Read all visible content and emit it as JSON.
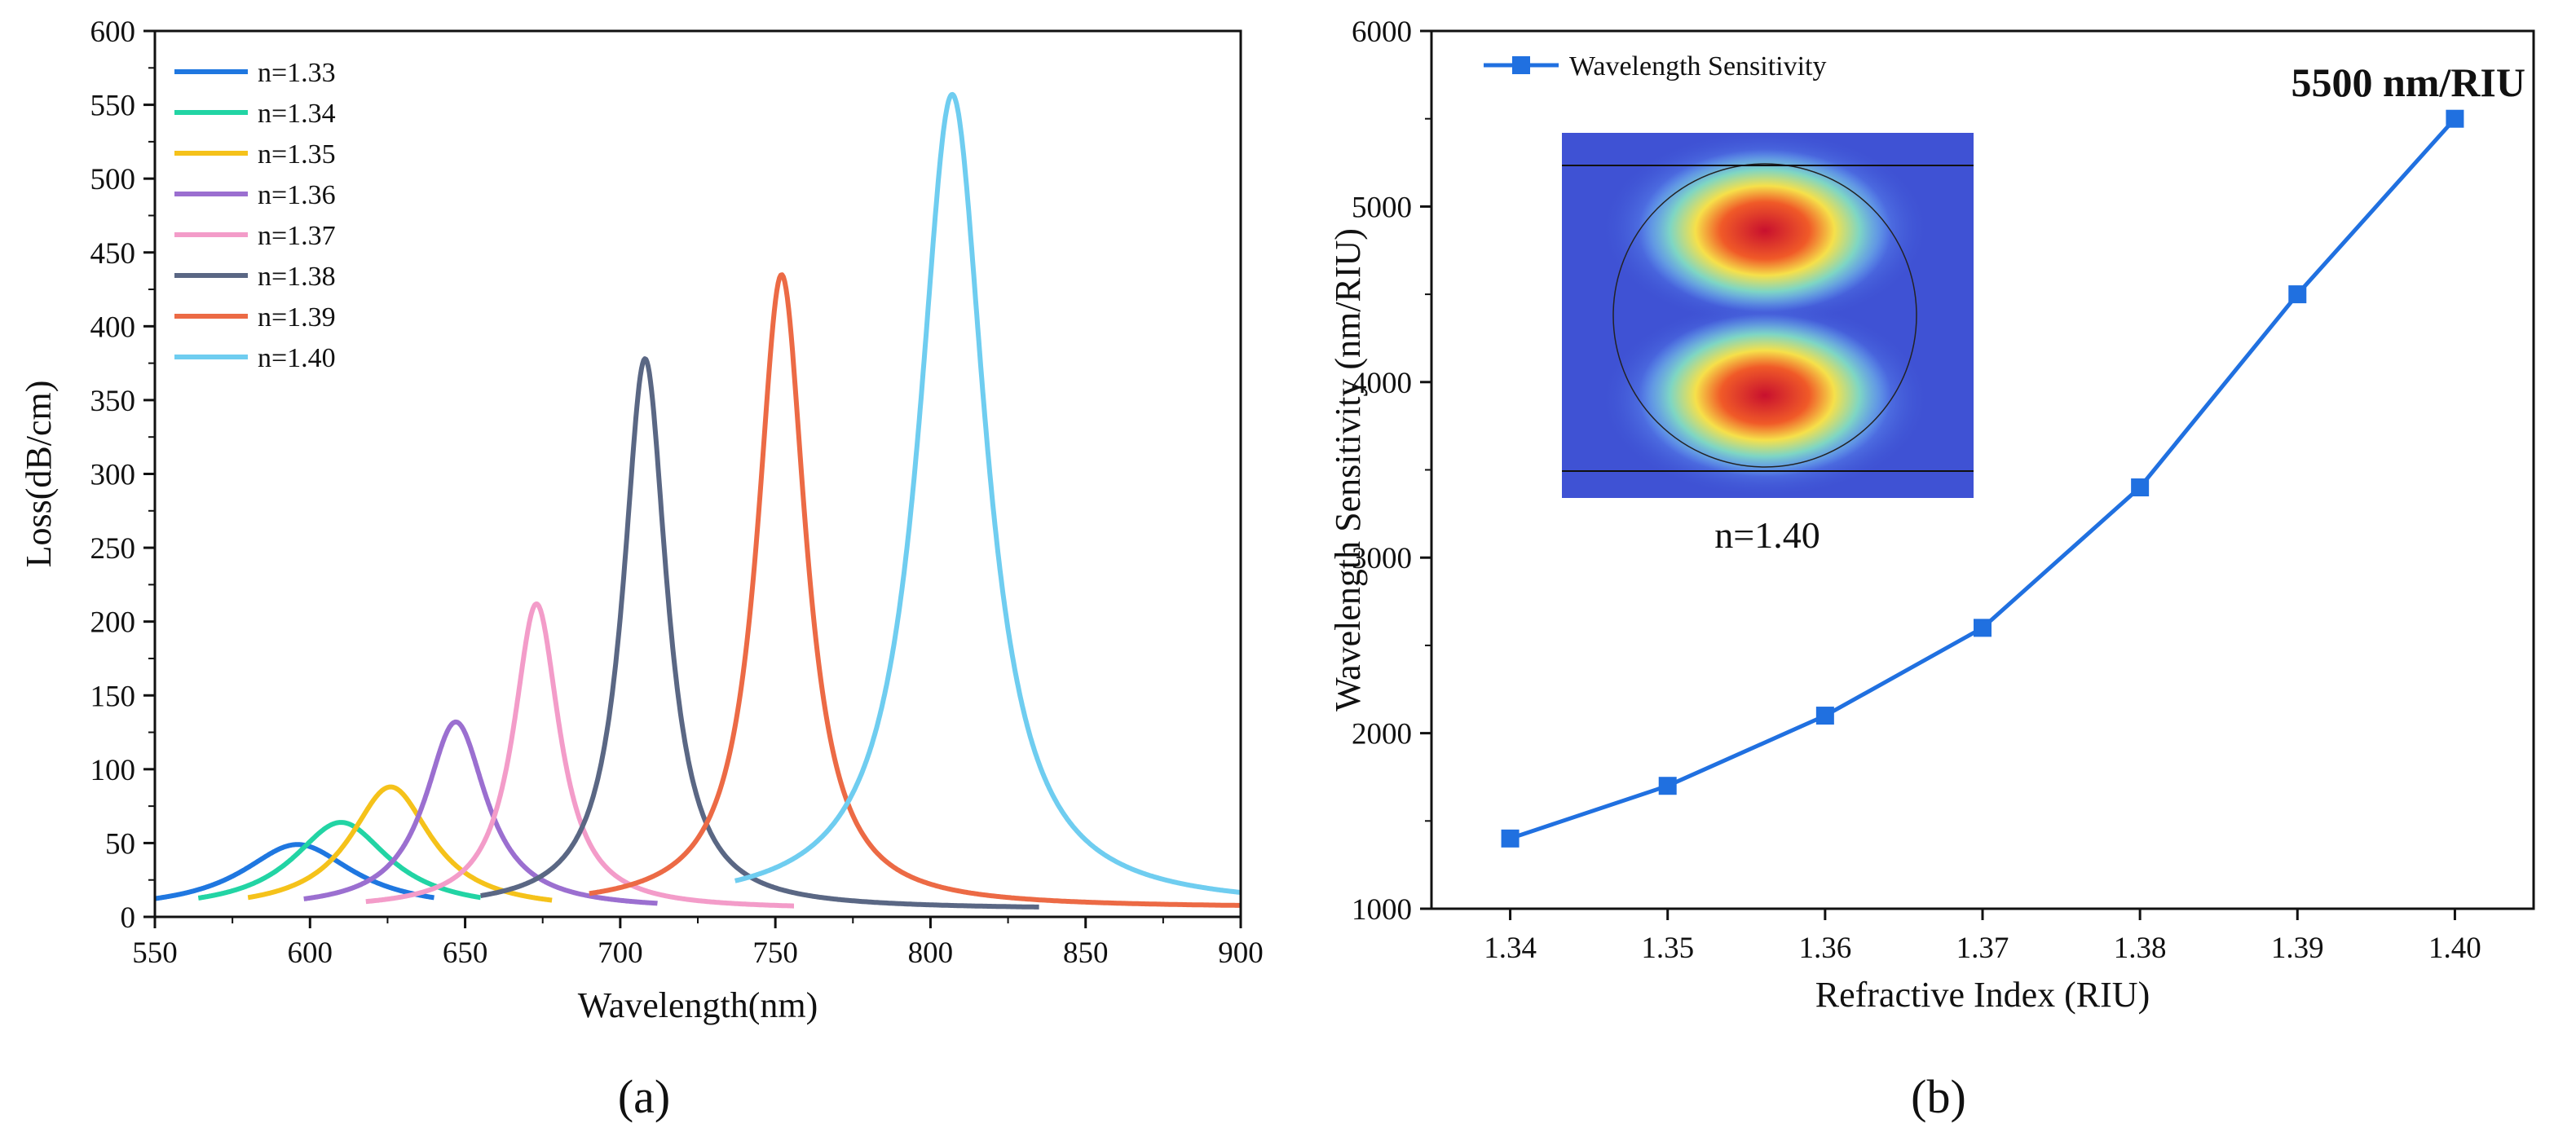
{
  "chart_data": [
    {
      "type": "line",
      "panel_label": "(a)",
      "xlabel": "Wavelength(nm)",
      "ylabel": "Loss(dB/cm)",
      "xlim": [
        550,
        900
      ],
      "ylim": [
        0,
        600
      ],
      "xticks": [
        550,
        600,
        650,
        700,
        750,
        800,
        850,
        900
      ],
      "yticks": [
        0,
        50,
        100,
        150,
        200,
        250,
        300,
        350,
        400,
        450,
        500,
        550,
        600
      ],
      "legend_position": "top-left",
      "series": [
        {
          "name": "n=1.33",
          "color": "#1f77e0",
          "peak_x": 596,
          "peak_y": 49,
          "half_width": 22,
          "x_range": [
            550,
            640
          ],
          "base": 4
        },
        {
          "name": "n=1.34",
          "color": "#22d4a4",
          "peak_x": 610,
          "peak_y": 64,
          "half_width": 19,
          "x_range": [
            564,
            655
          ],
          "base": 4
        },
        {
          "name": "n=1.35",
          "color": "#f5c21a",
          "peak_x": 626,
          "peak_y": 88,
          "half_width": 16,
          "x_range": [
            580,
            678
          ],
          "base": 4
        },
        {
          "name": "n=1.36",
          "color": "#9b6fd0",
          "peak_x": 647,
          "peak_y": 132,
          "half_width": 12,
          "x_range": [
            598,
            712
          ],
          "base": 5
        },
        {
          "name": "n=1.37",
          "color": "#f39cc9",
          "peak_x": 673,
          "peak_y": 212,
          "half_width": 9,
          "x_range": [
            618,
            756
          ],
          "base": 5
        },
        {
          "name": "n=1.38",
          "color": "#5a6784",
          "peak_x": 708,
          "peak_y": 378,
          "half_width": 8.5,
          "x_range": [
            655,
            835
          ],
          "base": 5
        },
        {
          "name": "n=1.39",
          "color": "#ec6a45",
          "peak_x": 752,
          "peak_y": 435,
          "half_width": 9.5,
          "x_range": [
            690,
            900
          ],
          "base": 6
        },
        {
          "name": "n=1.40",
          "color": "#6fcdf0",
          "peak_x": 807,
          "peak_y": 557,
          "half_width": 13,
          "x_range": [
            737,
            900
          ],
          "base": 6
        }
      ]
    },
    {
      "type": "line",
      "panel_label": "(b)",
      "xlabel": "Refractive Index (RIU)",
      "ylabel": "Wavelength Sensitivity (nm/RIU)",
      "xlim": [
        1.335,
        1.405
      ],
      "ylim": [
        1000,
        6000
      ],
      "xticks": [
        "1.34",
        "1.35",
        "1.36",
        "1.37",
        "1.38",
        "1.39",
        "1.40"
      ],
      "yticks": [
        1000,
        2000,
        3000,
        4000,
        5000,
        6000
      ],
      "legend_position": "top-left",
      "annotation": "5500 nm/RIU",
      "inset_caption": "n=1.40",
      "series": [
        {
          "name": "Wavelength Sensitivity",
          "color": "#2070e0",
          "x": [
            1.34,
            1.35,
            1.36,
            1.37,
            1.38,
            1.39,
            1.4
          ],
          "y": [
            1400,
            1700,
            2100,
            2600,
            3400,
            4500,
            5500
          ]
        }
      ]
    }
  ]
}
